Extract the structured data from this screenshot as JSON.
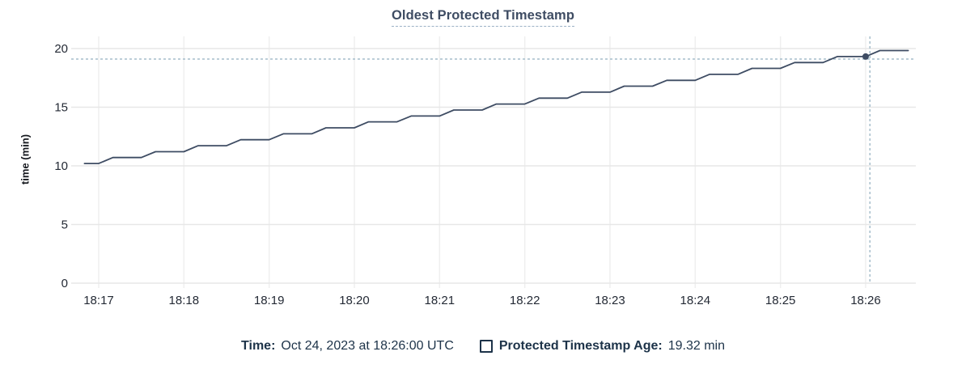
{
  "chart_data": {
    "type": "line",
    "title": "Oldest Protected Timestamp",
    "ylabel": "time (min)",
    "ylim": [
      0,
      20
    ],
    "y_ticks": [
      0,
      5,
      10,
      15,
      20
    ],
    "x_ticks": [
      "18:17",
      "18:18",
      "18:19",
      "18:20",
      "18:21",
      "18:22",
      "18:23",
      "18:24",
      "18:25",
      "18:26"
    ],
    "grid": true,
    "legend_position": "bottom",
    "series": [
      {
        "name": "Protected Timestamp Age",
        "unit": "min",
        "x": [
          "18:16:50",
          "18:17:00",
          "18:17:10",
          "18:17:20",
          "18:17:30",
          "18:17:40",
          "18:17:50",
          "18:18:00",
          "18:18:10",
          "18:18:20",
          "18:18:30",
          "18:18:40",
          "18:18:50",
          "18:19:00",
          "18:19:10",
          "18:19:20",
          "18:19:30",
          "18:19:40",
          "18:19:50",
          "18:20:00",
          "18:20:10",
          "18:20:20",
          "18:20:30",
          "18:20:40",
          "18:20:50",
          "18:21:00",
          "18:21:10",
          "18:21:20",
          "18:21:30",
          "18:21:40",
          "18:21:50",
          "18:22:00",
          "18:22:10",
          "18:22:20",
          "18:22:30",
          "18:22:40",
          "18:22:50",
          "18:23:00",
          "18:23:10",
          "18:23:20",
          "18:23:30",
          "18:23:40",
          "18:23:50",
          "18:24:00",
          "18:24:10",
          "18:24:20",
          "18:24:30",
          "18:24:40",
          "18:24:50",
          "18:25:00",
          "18:25:10",
          "18:25:20",
          "18:25:30",
          "18:25:40",
          "18:25:50",
          "18:26:00",
          "18:26:10",
          "18:26:20",
          "18:26:30"
        ],
        "y": [
          10.2,
          10.2,
          10.71,
          10.71,
          10.71,
          11.21,
          11.21,
          11.21,
          11.72,
          11.72,
          11.72,
          12.23,
          12.23,
          12.23,
          12.73,
          12.73,
          12.73,
          13.24,
          13.24,
          13.24,
          13.75,
          13.75,
          13.75,
          14.25,
          14.25,
          14.25,
          14.76,
          14.76,
          14.76,
          15.27,
          15.27,
          15.27,
          15.77,
          15.77,
          15.77,
          16.28,
          16.28,
          16.28,
          16.79,
          16.79,
          16.79,
          17.29,
          17.29,
          17.29,
          17.8,
          17.8,
          17.8,
          18.31,
          18.31,
          18.31,
          18.81,
          18.81,
          18.81,
          19.32,
          19.32,
          19.32,
          19.83,
          19.83,
          19.83
        ]
      }
    ],
    "hover": {
      "point_time": "18:26:00",
      "point_value": 19.32,
      "crosshair_x_time": "18:26:03",
      "crosshair_y_value": 19.1
    }
  },
  "footer": {
    "time_label": "Time:",
    "time_value": "Oct 24, 2023 at 18:26:00 UTC",
    "series_label": "Protected Timestamp Age:",
    "series_value": "19.32 min"
  },
  "colors": {
    "line": "#3e4c63",
    "dot": "#3e4c63",
    "title": "#3e4c63",
    "title_underline": "#9cb1c6",
    "grid_horizontal": "#e7e7e7",
    "grid_vertical": "#efefef",
    "crosshair": "#a6becb",
    "tick_text": "#242a35",
    "legend_text": "#1d3349"
  }
}
